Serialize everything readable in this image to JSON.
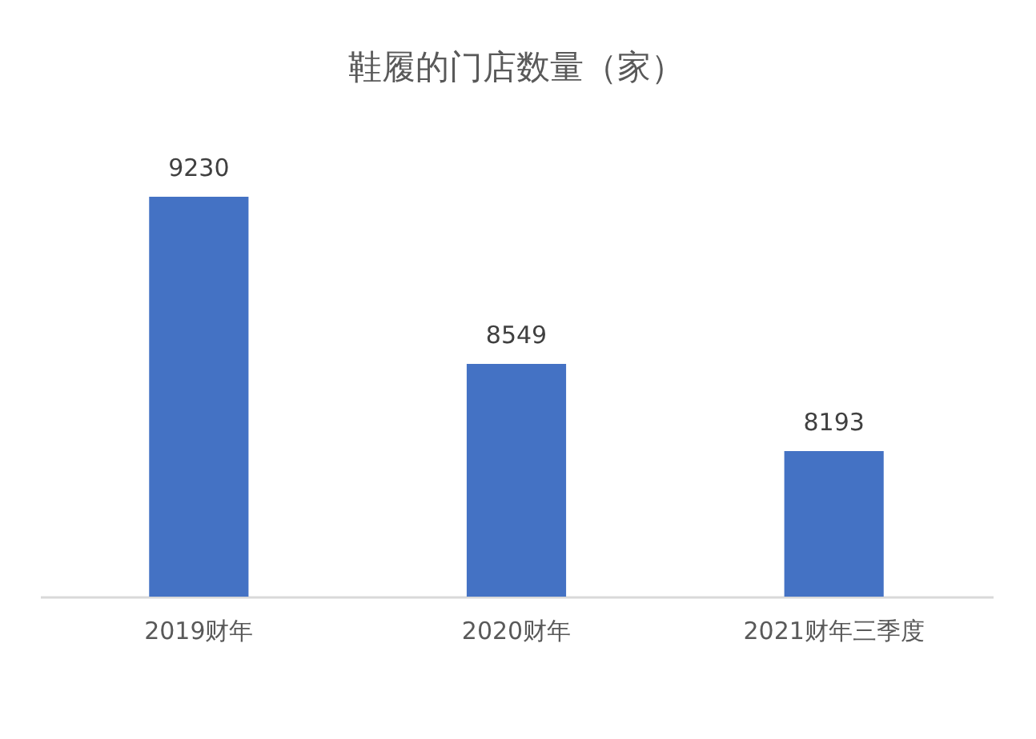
{
  "chart_data": {
    "type": "bar",
    "title": "鞋履的门店数量（家）",
    "categories": [
      "2019财年",
      "2020财年",
      "2021财年三季度"
    ],
    "values": [
      9230,
      8549,
      8193
    ],
    "color": "#4472c4",
    "ylim": [
      7600,
      9230
    ],
    "data_labels": true
  }
}
